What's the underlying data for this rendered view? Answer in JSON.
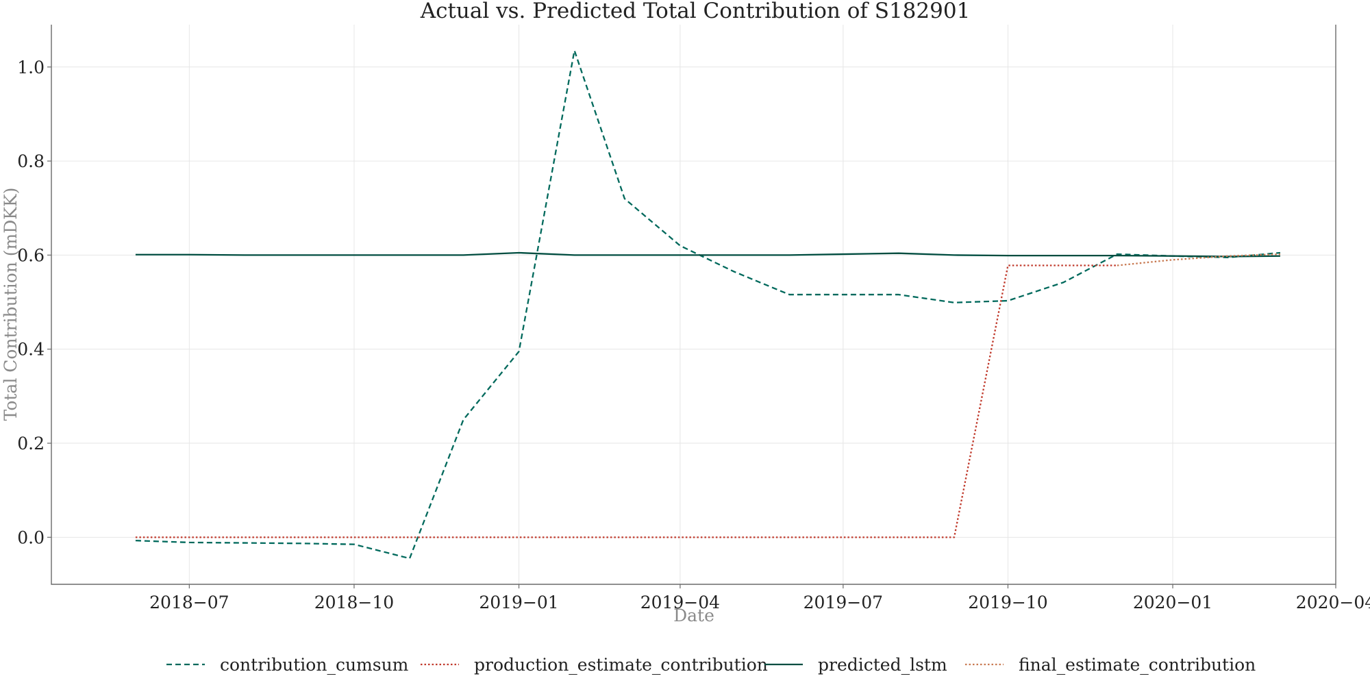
{
  "chart_data": {
    "type": "line",
    "title": "Actual vs. Predicted Total Contribution of S182901",
    "xlabel": "Date",
    "ylabel": "Total Contribution (mDKK)",
    "x_range": [
      "2018-04-15",
      "2020-04-01"
    ],
    "ylim": [
      -0.1,
      1.09
    ],
    "x_ticks": [
      {
        "date": "2018-07-01",
        "label": "2018−07"
      },
      {
        "date": "2018-10-01",
        "label": "2018−10"
      },
      {
        "date": "2019-01-01",
        "label": "2019−01"
      },
      {
        "date": "2019-04-01",
        "label": "2019−04"
      },
      {
        "date": "2019-07-01",
        "label": "2019−07"
      },
      {
        "date": "2019-10-01",
        "label": "2019−10"
      },
      {
        "date": "2020-01-01",
        "label": "2020−01"
      },
      {
        "date": "2020-04-01",
        "label": "2020−04"
      }
    ],
    "y_ticks": [
      {
        "value": 0.0,
        "label": "0.0"
      },
      {
        "value": 0.2,
        "label": "0.2"
      },
      {
        "value": 0.4,
        "label": "0.4"
      },
      {
        "value": 0.6,
        "label": "0.6"
      },
      {
        "value": 0.8,
        "label": "0.8"
      },
      {
        "value": 1.0,
        "label": "1.0"
      }
    ],
    "grid": true,
    "legend_position": "bottom-center",
    "x": [
      "2018-06-01",
      "2018-07-01",
      "2018-08-01",
      "2018-09-01",
      "2018-10-01",
      "2018-11-01",
      "2018-12-01",
      "2019-01-01",
      "2019-02-01",
      "2019-03-01",
      "2019-04-01",
      "2019-05-01",
      "2019-06-01",
      "2019-07-01",
      "2019-08-01",
      "2019-09-01",
      "2019-10-01",
      "2019-11-01",
      "2019-12-01",
      "2020-01-01",
      "2020-02-01",
      "2020-03-01"
    ],
    "series": [
      {
        "name": "contribution_cumsum",
        "color": "#00695c",
        "style": "dashed",
        "values": [
          -0.007,
          -0.011,
          -0.012,
          -0.013,
          -0.015,
          -0.045,
          0.25,
          0.395,
          1.035,
          0.72,
          0.62,
          0.565,
          0.516,
          0.516,
          0.516,
          0.499,
          0.503,
          0.542,
          0.602,
          0.598,
          0.595,
          0.605
        ]
      },
      {
        "name": "production_estimate_contribution",
        "color": "#c0392b",
        "style": "dotted",
        "values": [
          0,
          0,
          0,
          0,
          0,
          0,
          0,
          0,
          0,
          0,
          0,
          0,
          0,
          0,
          0,
          0,
          0.578,
          0.578,
          0.578,
          null,
          null,
          null
        ]
      },
      {
        "name": "predicted_lstm",
        "color": "#004d40",
        "style": "solid",
        "values": [
          0.601,
          0.601,
          0.6,
          0.6,
          0.6,
          0.6,
          0.6,
          0.605,
          0.6,
          0.6,
          0.6,
          0.6,
          0.6,
          0.602,
          0.604,
          0.6,
          0.599,
          0.599,
          0.599,
          0.598,
          0.597,
          0.598
        ]
      },
      {
        "name": "final_estimate_contribution",
        "color": "#c87a52",
        "style": "dotted",
        "values": [
          null,
          null,
          null,
          null,
          null,
          null,
          null,
          null,
          null,
          null,
          null,
          null,
          null,
          null,
          null,
          null,
          null,
          null,
          0.578,
          0.59,
          0.598,
          0.602
        ]
      }
    ]
  }
}
